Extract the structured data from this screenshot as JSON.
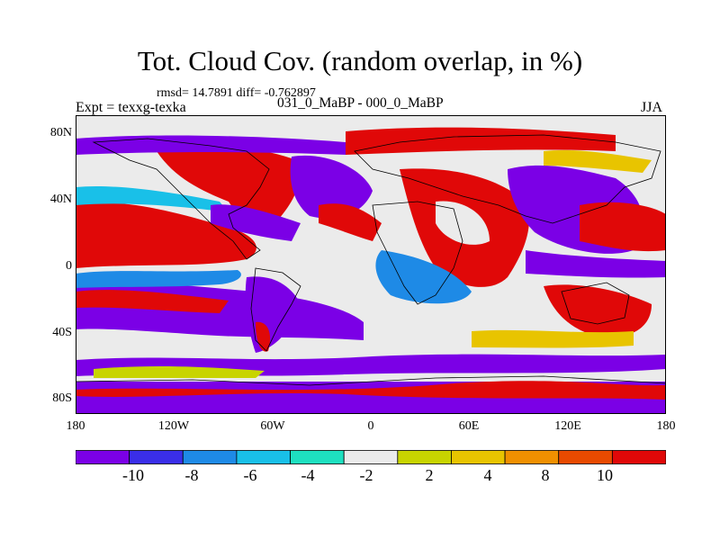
{
  "title": "Tot. Cloud Cov. (random overlap, in %)",
  "stats": "rmsd= 14.7891 diff= -0.762897",
  "expt": "Expt = texxg-texka",
  "periods": "031_0_MaBP - 000_0_MaBP",
  "season": "JJA",
  "lat_labels": [
    "80N",
    "40N",
    "0",
    "40S",
    "80S"
  ],
  "lon_labels": [
    "180",
    "120W",
    "60W",
    "0",
    "60E",
    "120E",
    "180"
  ],
  "colorbar": {
    "labels": [
      "-10",
      "-8",
      "-6",
      "-4",
      "-2",
      "2",
      "4",
      "8",
      "10"
    ],
    "colors": [
      "#7b00e6",
      "#3a2ee8",
      "#1e8ae6",
      "#19c0e8",
      "#1ee0c0",
      "#ebebeb",
      "#c8d400",
      "#e8c400",
      "#f09000",
      "#e84a00",
      "#e00808"
    ]
  }
}
